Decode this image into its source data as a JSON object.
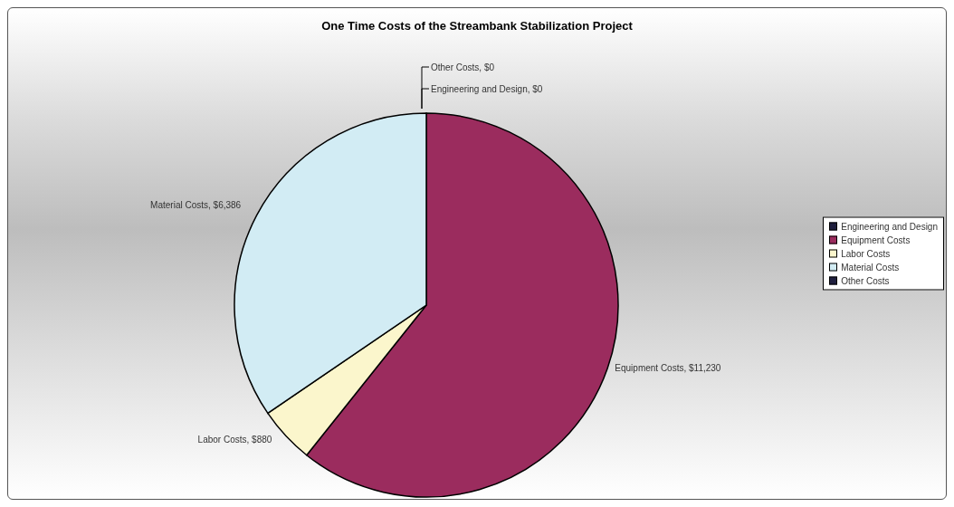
{
  "chart_data": {
    "type": "pie",
    "title": "One Time Costs of the Streambank Stabilization Project",
    "categories": [
      "Engineering and Design",
      "Equipment Costs",
      "Labor Costs",
      "Material Costs",
      "Other Costs"
    ],
    "values": [
      0,
      11230,
      880,
      6386,
      0
    ],
    "value_labels": [
      "Engineering and Design, $0",
      "Equipment Costs, $11,230",
      "Labor Costs, $880",
      "Material Costs, $6,386",
      "Other Costs, $0"
    ],
    "colors": [
      "#1f1f3f",
      "#9b2c5e",
      "#fbf6cc",
      "#d2ecf4",
      "#1f1f3f"
    ],
    "legend": "right"
  }
}
